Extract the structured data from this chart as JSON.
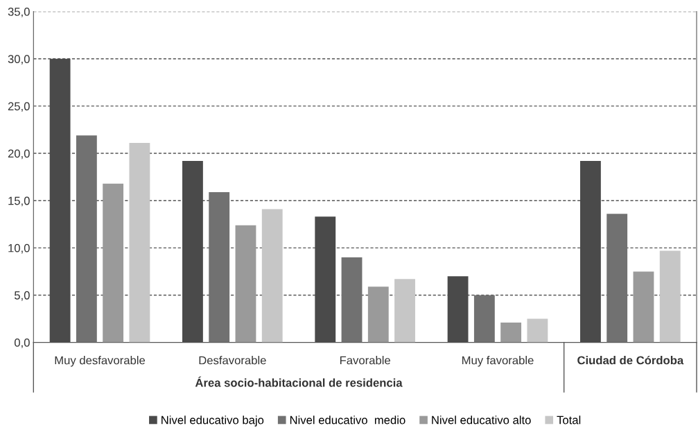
{
  "chart_data": {
    "type": "bar",
    "xlabel": "Área socio-habitacional de residencia",
    "categories": [
      "Muy desfavorable",
      "Desfavorable",
      "Favorable",
      "Muy favorable",
      "Ciudad de Córdoba"
    ],
    "series": [
      {
        "name": "Nivel educativo bajo",
        "color": "#4a4a4a",
        "values": [
          30.0,
          19.2,
          13.3,
          7.0,
          19.2
        ]
      },
      {
        "name": "Nivel educativo  medio",
        "color": "#717171",
        "values": [
          21.9,
          15.9,
          9.0,
          5.0,
          13.6
        ]
      },
      {
        "name": "Nivel educativo alto",
        "color": "#9a9a9a",
        "values": [
          16.8,
          12.4,
          5.9,
          2.1,
          7.5
        ]
      },
      {
        "name": "Total",
        "color": "#c6c6c6",
        "values": [
          21.1,
          14.1,
          6.7,
          2.5,
          9.7
        ]
      }
    ],
    "ylim": [
      0,
      35
    ],
    "yticks": [
      {
        "value": 0,
        "label": "0,0"
      },
      {
        "value": 5,
        "label": "5,0"
      },
      {
        "value": 10,
        "label": "10,0"
      },
      {
        "value": 15,
        "label": "15,0"
      },
      {
        "value": 20,
        "label": "20,0"
      },
      {
        "value": 25,
        "label": "25,0"
      },
      {
        "value": 30,
        "label": "30,0"
      },
      {
        "value": 35,
        "label": "35,0"
      }
    ],
    "grid": "y",
    "legend": "bottom"
  }
}
